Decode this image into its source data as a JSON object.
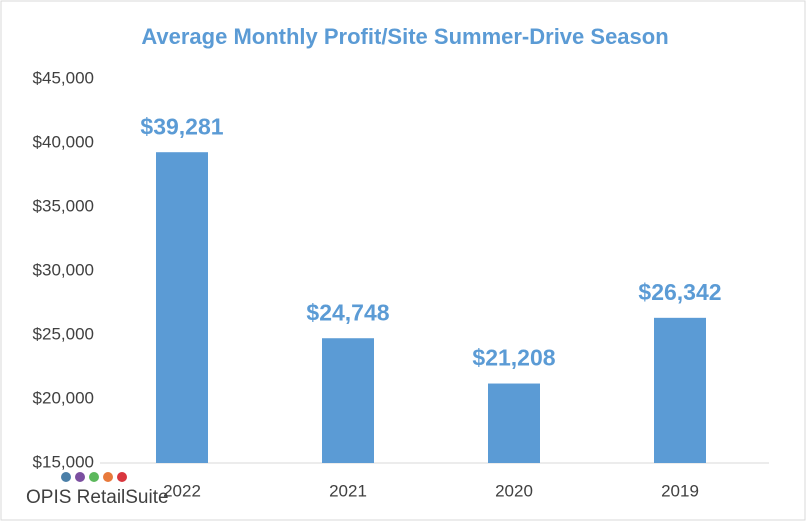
{
  "chart_data": {
    "type": "bar",
    "title": "Average Monthly Profit/Site Summer-Drive Season",
    "categories": [
      "2022",
      "2021",
      "2020",
      "2019"
    ],
    "values": [
      39281,
      24748,
      21208,
      26342
    ],
    "value_labels": [
      "$39,281",
      "$24,748",
      "$21,208",
      "$26,342"
    ],
    "color": "#5b9bd5",
    "ylim": [
      15000,
      45000
    ],
    "yticks": [
      {
        "value": 15000,
        "label": "$15,000"
      },
      {
        "value": 20000,
        "label": "$20,000"
      },
      {
        "value": 25000,
        "label": "$25,000"
      },
      {
        "value": 30000,
        "label": "$30,000"
      },
      {
        "value": 35000,
        "label": "$35,000"
      },
      {
        "value": 40000,
        "label": "$40,000"
      },
      {
        "value": 45000,
        "label": "$45,000"
      }
    ],
    "grid": false,
    "logo": "OPIS RetailSuite"
  }
}
